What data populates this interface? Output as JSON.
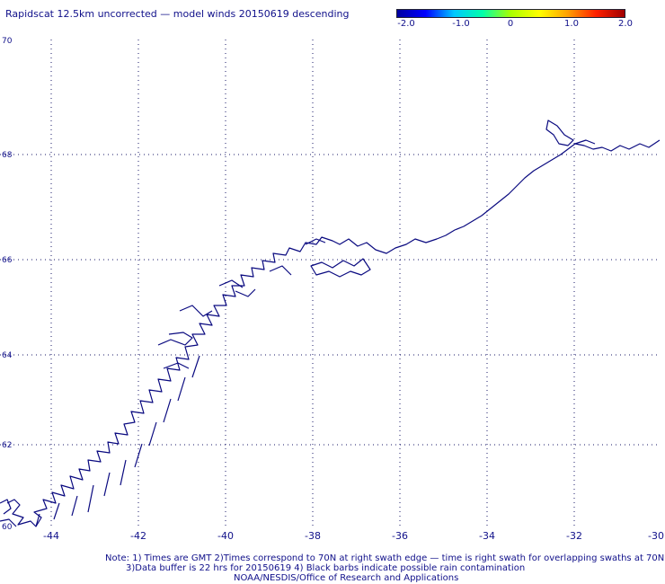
{
  "title": "Rapidscat 12.5km uncorrected — model winds 20150619 descending",
  "colorbar": {
    "labels": [
      "-2.0",
      "-1.0",
      "0",
      "1.0",
      "2.0"
    ],
    "colors": [
      "#0000a0",
      "#0000ff",
      "#00c8ff",
      "#00ffaa",
      "#aaff00",
      "#ffff00",
      "#ffa000",
      "#ff2000",
      "#a00000"
    ]
  },
  "map": {
    "lat_labels": [
      "70",
      "68",
      "66",
      "64",
      "62",
      "60"
    ],
    "lon_labels": [
      "-44",
      "-42",
      "-40",
      "-38",
      "-36",
      "-34",
      "-32",
      "-30"
    ],
    "coastline_color": "#0a0a80",
    "grid": "dotted"
  },
  "notes": {
    "line1": "Note: 1) Times are GMT 2)Times correspond to 70N at right swath edge — time is right swath for overlapping swaths at 70N",
    "line2": "3)Data buffer is 22 hrs for 20150619 4) Black barbs indicate possible rain contamination",
    "line3": "NOAA/NESDIS/Office of Research and Applications"
  }
}
